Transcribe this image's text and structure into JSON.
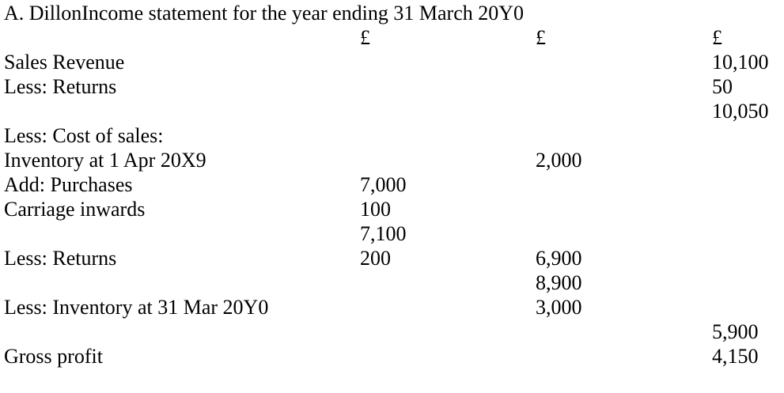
{
  "title": "A. DillonIncome statement for the year ending 31 March 20Y0",
  "rows": [
    {
      "label": "",
      "c1": "£",
      "c2": "£",
      "c3": "£"
    },
    {
      "label": "Sales Revenue",
      "c1": "",
      "c2": "",
      "c3": "10,100"
    },
    {
      "label": "Less: Returns",
      "c1": "",
      "c2": "",
      "c3": "50"
    },
    {
      "label": "",
      "c1": "",
      "c2": "",
      "c3": "10,050"
    },
    {
      "label": "Less: Cost of sales:",
      "c1": "",
      "c2": "",
      "c3": ""
    },
    {
      "label": "Inventory at 1 Apr 20X9",
      "c1": "",
      "c2": "2,000",
      "c3": ""
    },
    {
      "label": "Add: Purchases",
      "c1": "7,000",
      "c2": "",
      "c3": ""
    },
    {
      "label": "Carriage inwards",
      "c1": "100",
      "c2": "",
      "c3": ""
    },
    {
      "label": "",
      "c1": "7,100",
      "c2": "",
      "c3": ""
    },
    {
      "label": "Less: Returns",
      "c1": "200",
      "c2": "6,900",
      "c3": ""
    },
    {
      "label": "",
      "c1": "",
      "c2": "8,900",
      "c3": ""
    },
    {
      "label": "Less: Inventory at 31 Mar 20Y0",
      "c1": "",
      "c2": "3,000",
      "c3": ""
    },
    {
      "label": "",
      "c1": "",
      "c2": "",
      "c3": "5,900"
    },
    {
      "label": "Gross profit",
      "c1": "",
      "c2": "",
      "c3": "4,150"
    }
  ]
}
